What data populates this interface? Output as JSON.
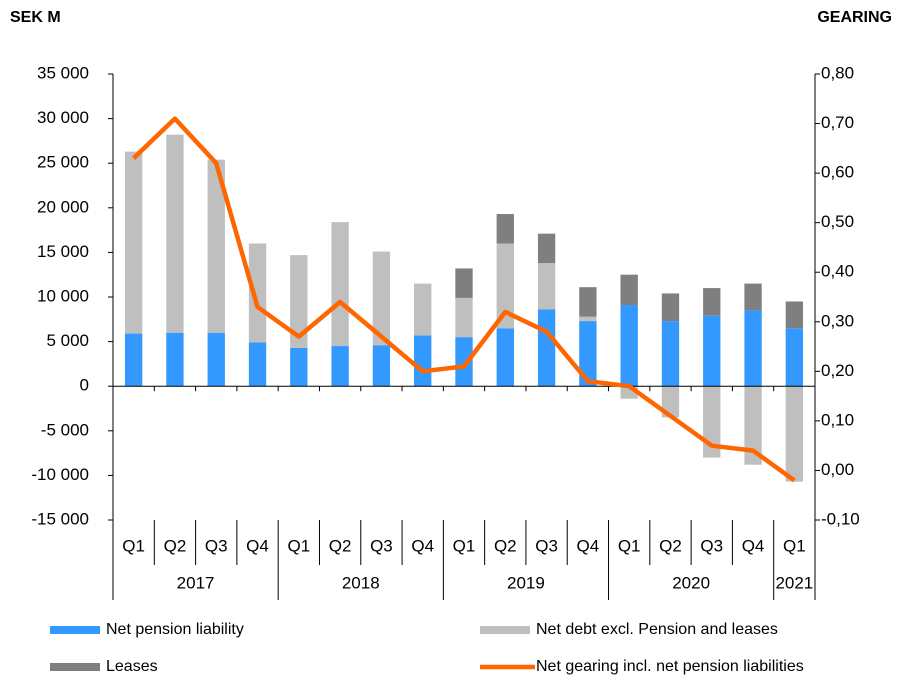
{
  "chart_data": {
    "type": "bar",
    "y_label": "SEK M",
    "y2_label": "GEARING",
    "categories": [
      "Q1",
      "Q2",
      "Q3",
      "Q4",
      "Q1",
      "Q2",
      "Q3",
      "Q4",
      "Q1",
      "Q2",
      "Q3",
      "Q4",
      "Q1",
      "Q2",
      "Q3",
      "Q4",
      "Q1"
    ],
    "years": [
      "2017",
      "2018",
      "2019",
      "2020",
      "2021"
    ],
    "ylim": [
      -15000,
      35000
    ],
    "yticks": [
      {
        "value": -15000,
        "label": "-15 000"
      },
      {
        "value": -10000,
        "label": "-10 000"
      },
      {
        "value": -5000,
        "label": "-5 000"
      },
      0,
      {
        "value": 5000,
        "label": "5 000"
      },
      {
        "value": 10000,
        "label": "10 000"
      },
      {
        "value": 15000,
        "label": "15 000"
      },
      {
        "value": 20000,
        "label": "20 000"
      },
      {
        "value": 25000,
        "label": "25 000"
      },
      {
        "value": 30000,
        "label": "30 000"
      },
      {
        "value": 35000,
        "label": "35 000"
      }
    ],
    "y2lim": [
      -0.1,
      0.8
    ],
    "y2ticks": [
      {
        "value": -0.1,
        "label": "-0,10"
      },
      {
        "value": 0,
        "label": "0,00"
      },
      {
        "value": 0.1,
        "label": "0,10"
      },
      {
        "value": 0.2,
        "label": "0,20"
      },
      {
        "value": 0.3,
        "label": "0,30"
      },
      {
        "value": 0.4,
        "label": "0,40"
      },
      {
        "value": 0.5,
        "label": "0,50"
      },
      {
        "value": 0.6,
        "label": "0,60"
      },
      {
        "value": 0.7,
        "label": "0,70"
      },
      {
        "value": 0.8,
        "label": "0,80"
      }
    ],
    "series": [
      {
        "name": "Net pension liability",
        "color": "#3399ff",
        "values": [
          5900,
          6000,
          6000,
          4900,
          4300,
          4500,
          4600,
          5700,
          5500,
          6500,
          8600,
          7300,
          9100,
          7300,
          7900,
          8500,
          6500
        ]
      },
      {
        "name": "Net debt excl. Pension and leases",
        "color": "#bfbfbf",
        "values": [
          20400,
          22200,
          19400,
          11100,
          10400,
          13900,
          10500,
          5800,
          4400,
          9500,
          5200,
          500,
          -1400,
          -3500,
          -8000,
          -8800,
          -10700
        ]
      },
      {
        "name": "Leases",
        "color": "#7f7f7f",
        "values": [
          0,
          0,
          0,
          0,
          0,
          0,
          0,
          0,
          3300,
          3300,
          3300,
          3300,
          3400,
          3100,
          3100,
          3000,
          3000
        ]
      },
      {
        "name": "Net gearing incl. net pension liabilities",
        "color": "#ff6600",
        "type": "line",
        "axis": "y2",
        "values": [
          0.63,
          0.71,
          0.62,
          0.33,
          0.27,
          0.34,
          0.27,
          0.2,
          0.21,
          0.32,
          0.28,
          0.18,
          0.17,
          0.11,
          0.05,
          0.04,
          -0.02
        ]
      }
    ]
  }
}
